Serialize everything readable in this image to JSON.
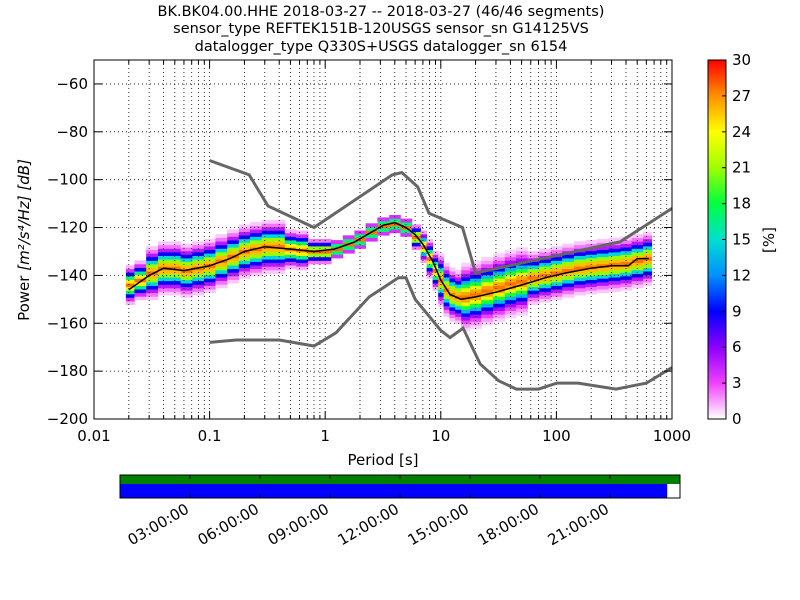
{
  "chart_data": {
    "type": "heatmap",
    "title_lines": [
      "BK.BK04.00.HHE   2018-03-27 -- 2018-03-27  (46/46 segments)",
      "sensor_type REFTEK151B-120USGS sensor_sn G14125VS",
      "datalogger_type Q330S+USGS datalogger_sn 6154"
    ],
    "xlabel": "Period [s]",
    "ylabel_text": "Power",
    "ylabel_unit": "[m²/s⁴/Hz] [dB]",
    "x_scale": "log",
    "xlim": [
      0.01,
      1000
    ],
    "ylim": [
      -200,
      -50
    ],
    "x_ticks": [
      {
        "v": 0.01,
        "label": "0.01"
      },
      {
        "v": 0.1,
        "label": "0.1"
      },
      {
        "v": 1,
        "label": "1"
      },
      {
        "v": 10,
        "label": "10"
      },
      {
        "v": 100,
        "label": "100"
      },
      {
        "v": 1000,
        "label": "1000"
      }
    ],
    "y_ticks": [
      {
        "v": -60,
        "label": "−60"
      },
      {
        "v": -80,
        "label": "−80"
      },
      {
        "v": -100,
        "label": "−100"
      },
      {
        "v": -120,
        "label": "−120"
      },
      {
        "v": -140,
        "label": "−140"
      },
      {
        "v": -160,
        "label": "−160"
      },
      {
        "v": -180,
        "label": "−180"
      },
      {
        "v": -200,
        "label": "−200"
      }
    ],
    "colorbar": {
      "label": "[%]",
      "range": [
        0,
        30
      ],
      "ticks": [
        {
          "v": 0,
          "label": "0"
        },
        {
          "v": 3,
          "label": "3"
        },
        {
          "v": 6,
          "label": "6"
        },
        {
          "v": 9,
          "label": "9"
        },
        {
          "v": 12,
          "label": "12"
        },
        {
          "v": 15,
          "label": "15"
        },
        {
          "v": 18,
          "label": "18"
        },
        {
          "v": 21,
          "label": "21"
        },
        {
          "v": 24,
          "label": "24"
        },
        {
          "v": 27,
          "label": "27"
        },
        {
          "v": 30,
          "label": "30"
        }
      ],
      "colors": [
        "#ffffff",
        "#f040ff",
        "#8c00ff",
        "#0000ff",
        "#0090ff",
        "#00e0d0",
        "#00ff40",
        "#a0ff00",
        "#ffff00",
        "#ff9000",
        "#ff0000"
      ]
    },
    "nhnm": [
      [
        0.1,
        -92
      ],
      [
        0.22,
        -98
      ],
      [
        0.32,
        -111
      ],
      [
        0.8,
        -120
      ],
      [
        3.8,
        -98
      ],
      [
        4.6,
        -97
      ],
      [
        6.3,
        -103
      ],
      [
        7.9,
        -114
      ],
      [
        15.4,
        -120
      ],
      [
        20,
        -139
      ],
      [
        354.8,
        -126
      ],
      [
        1000,
        -112
      ]
    ],
    "nlnm": [
      [
        0.1,
        -168
      ],
      [
        0.17,
        -167
      ],
      [
        0.4,
        -167
      ],
      [
        0.8,
        -169.5
      ],
      [
        1.24,
        -164
      ],
      [
        2.4,
        -149
      ],
      [
        4.3,
        -141
      ],
      [
        5,
        -141
      ],
      [
        6,
        -150
      ],
      [
        10,
        -163
      ],
      [
        12,
        -166
      ],
      [
        15.6,
        -162
      ],
      [
        21.9,
        -177
      ],
      [
        31.6,
        -184
      ],
      [
        45,
        -187.5
      ],
      [
        70,
        -187.5
      ],
      [
        101,
        -185
      ],
      [
        154,
        -185
      ],
      [
        328,
        -187.5
      ],
      [
        600,
        -185
      ],
      [
        1000,
        -178.5
      ]
    ],
    "mode_line": [
      [
        0.02,
        -146
      ],
      [
        0.03,
        -140
      ],
      [
        0.04,
        -137
      ],
      [
        0.06,
        -138
      ],
      [
        0.1,
        -136
      ],
      [
        0.15,
        -133
      ],
      [
        0.2,
        -130
      ],
      [
        0.3,
        -128
      ],
      [
        0.5,
        -129
      ],
      [
        0.8,
        -130
      ],
      [
        1.2,
        -129
      ],
      [
        1.8,
        -126
      ],
      [
        2.5,
        -122
      ],
      [
        3.2,
        -119
      ],
      [
        4,
        -118
      ],
      [
        5,
        -120
      ],
      [
        6,
        -123
      ],
      [
        7,
        -127
      ],
      [
        8.5,
        -134
      ],
      [
        10,
        -142
      ],
      [
        12,
        -148
      ],
      [
        15,
        -150
      ],
      [
        20,
        -149
      ],
      [
        30,
        -147
      ],
      [
        50,
        -144
      ],
      [
        80,
        -141
      ],
      [
        120,
        -139
      ],
      [
        200,
        -137
      ],
      [
        300,
        -136
      ],
      [
        420,
        -136
      ],
      [
        500,
        -133
      ],
      [
        630,
        -133
      ]
    ],
    "density": [
      {
        "p": 0.02,
        "c": -144,
        "s": 3,
        "n": 6
      },
      {
        "p": 0.025,
        "c": -142,
        "s": 3,
        "n": 7
      },
      {
        "p": 0.032,
        "c": -139,
        "s": 4,
        "n": 9
      },
      {
        "p": 0.04,
        "c": -137,
        "s": 4,
        "n": 10
      },
      {
        "p": 0.05,
        "c": -137,
        "s": 4,
        "n": 10
      },
      {
        "p": 0.063,
        "c": -138,
        "s": 4,
        "n": 10
      },
      {
        "p": 0.08,
        "c": -137,
        "s": 4,
        "n": 10
      },
      {
        "p": 0.1,
        "c": -136,
        "s": 4,
        "n": 11
      },
      {
        "p": 0.126,
        "c": -134,
        "s": 4,
        "n": 11
      },
      {
        "p": 0.16,
        "c": -132,
        "s": 4,
        "n": 12
      },
      {
        "p": 0.2,
        "c": -130,
        "s": 4,
        "n": 12
      },
      {
        "p": 0.25,
        "c": -129,
        "s": 4,
        "n": 12
      },
      {
        "p": 0.32,
        "c": -128,
        "s": 4,
        "n": 12
      },
      {
        "p": 0.4,
        "c": -128,
        "s": 4,
        "n": 12
      },
      {
        "p": 0.5,
        "c": -129,
        "s": 3,
        "n": 10
      },
      {
        "p": 0.63,
        "c": -129.5,
        "s": 3,
        "n": 9
      },
      {
        "p": 0.8,
        "c": -130,
        "s": 2,
        "n": 6
      },
      {
        "p": 1.0,
        "c": -130,
        "s": 2,
        "n": 5
      },
      {
        "p": 1.26,
        "c": -129,
        "s": 1.5,
        "n": 4
      },
      {
        "p": 1.6,
        "c": -127,
        "s": 1.5,
        "n": 4
      },
      {
        "p": 2.0,
        "c": -125,
        "s": 1.5,
        "n": 4
      },
      {
        "p": 2.5,
        "c": -122,
        "s": 1.5,
        "n": 4
      },
      {
        "p": 3.2,
        "c": -119.5,
        "s": 1.5,
        "n": 4
      },
      {
        "p": 4.0,
        "c": -118.5,
        "s": 1.5,
        "n": 4
      },
      {
        "p": 5.0,
        "c": -120,
        "s": 1.5,
        "n": 4
      },
      {
        "p": 6.3,
        "c": -124,
        "s": 2,
        "n": 5
      },
      {
        "p": 7.1,
        "c": -128,
        "s": 2.5,
        "n": 6
      },
      {
        "p": 8.0,
        "c": -133,
        "s": 3,
        "n": 7
      },
      {
        "p": 9.0,
        "c": -138,
        "s": 3,
        "n": 8
      },
      {
        "p": 10.0,
        "c": -142,
        "s": 4,
        "n": 9
      },
      {
        "p": 11.2,
        "c": -146,
        "s": 4,
        "n": 10
      },
      {
        "p": 12.6,
        "c": -148,
        "s": 4,
        "n": 10
      },
      {
        "p": 14.1,
        "c": -149,
        "s": 4,
        "n": 11
      },
      {
        "p": 16.0,
        "c": -149,
        "s": 5,
        "n": 11
      },
      {
        "p": 20.0,
        "c": -148,
        "s": 5,
        "n": 12
      },
      {
        "p": 25.0,
        "c": -146.5,
        "s": 5,
        "n": 12
      },
      {
        "p": 32.0,
        "c": -145,
        "s": 5,
        "n": 12
      },
      {
        "p": 40.0,
        "c": -143.5,
        "s": 5,
        "n": 12
      },
      {
        "p": 50.0,
        "c": -142.5,
        "s": 5,
        "n": 11
      },
      {
        "p": 63.0,
        "c": -141,
        "s": 4,
        "n": 10
      },
      {
        "p": 80.0,
        "c": -140,
        "s": 4,
        "n": 10
      },
      {
        "p": 100.0,
        "c": -139,
        "s": 4,
        "n": 10
      },
      {
        "p": 126.0,
        "c": -138,
        "s": 4,
        "n": 10
      },
      {
        "p": 160.0,
        "c": -137,
        "s": 4,
        "n": 9
      },
      {
        "p": 200.0,
        "c": -136.5,
        "s": 4,
        "n": 9
      },
      {
        "p": 250.0,
        "c": -136,
        "s": 4,
        "n": 9
      },
      {
        "p": 320.0,
        "c": -135.5,
        "s": 4,
        "n": 9
      },
      {
        "p": 400.0,
        "c": -135,
        "s": 4,
        "n": 9
      },
      {
        "p": 500.0,
        "c": -134,
        "s": 4,
        "n": 9
      },
      {
        "p": 630.0,
        "c": -133,
        "s": 4,
        "n": 9
      }
    ],
    "timeline": {
      "tick_labels": [
        "03:00:00",
        "06:00:00",
        "09:00:00",
        "12:00:00",
        "15:00:00",
        "18:00:00",
        "21:00:00"
      ],
      "tick_hours": [
        3,
        6,
        9,
        12,
        15,
        18,
        21
      ],
      "range_hours": [
        0,
        24
      ],
      "data_coverage_end_hour": 23.45,
      "green_color": "#007f00",
      "blue_color": "#0000ff"
    }
  }
}
